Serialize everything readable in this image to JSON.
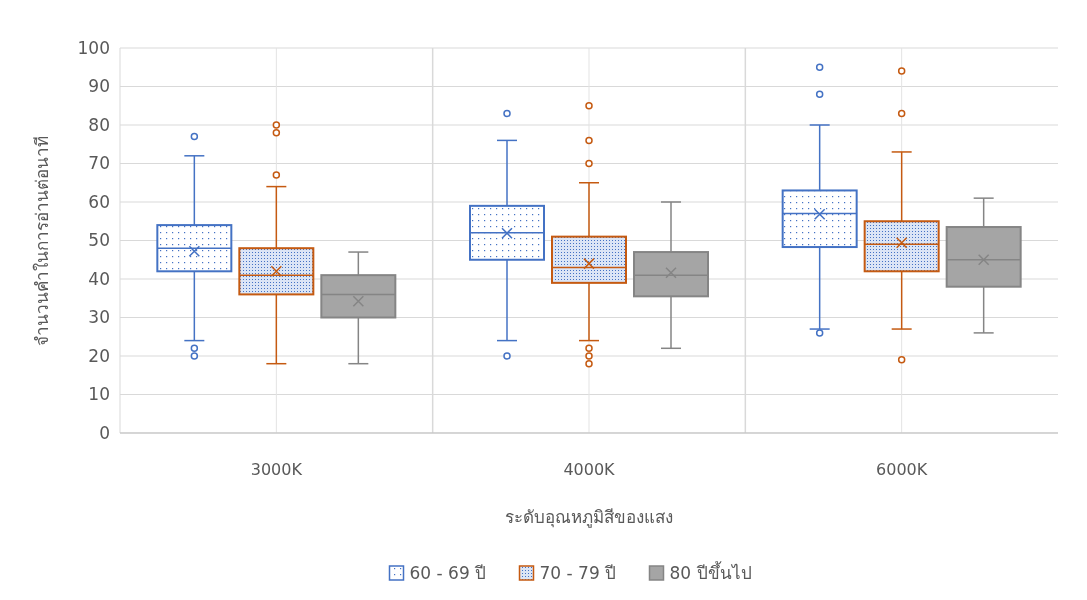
{
  "chart_data": {
    "type": "box",
    "xlabel": "ระดับอุณหภูมิสีของแสง",
    "ylabel": "จำนวนคำในการอ่านต่อนาที",
    "categories": [
      "3000K",
      "4000K",
      "6000K"
    ],
    "ylim": [
      0,
      100
    ],
    "yticks": [
      0,
      10,
      20,
      30,
      40,
      50,
      60,
      70,
      80,
      90,
      100
    ],
    "grid": true,
    "legend": "bottom",
    "series": [
      {
        "name": "60 - 69 ปี",
        "color": "#4472c4",
        "boxes": [
          {
            "low": 24,
            "q1": 42,
            "median": 48,
            "q3": 54,
            "high": 72,
            "mean": 47.2,
            "outliers": [
              77,
              22,
              20
            ]
          },
          {
            "low": 24,
            "q1": 45,
            "median": 52,
            "q3": 59,
            "high": 76,
            "mean": 51.9,
            "outliers": [
              83,
              20
            ]
          },
          {
            "low": 27,
            "q1": 48.3,
            "median": 57,
            "q3": 63,
            "high": 80,
            "mean": 56.8,
            "outliers": [
              95,
              88,
              26
            ]
          }
        ]
      },
      {
        "name": "70 - 79 ปี",
        "color": "#c55a11",
        "boxes": [
          {
            "low": 18,
            "q1": 36,
            "median": 41,
            "q3": 48,
            "high": 64,
            "mean": 42,
            "outliers": [
              80,
              78,
              67
            ]
          },
          {
            "low": 24,
            "q1": 39,
            "median": 43,
            "q3": 51,
            "high": 65,
            "mean": 44,
            "outliers": [
              85,
              76,
              70,
              22,
              20,
              18
            ]
          },
          {
            "low": 27,
            "q1": 42,
            "median": 49,
            "q3": 55,
            "high": 73,
            "mean": 49.4,
            "outliers": [
              94,
              83,
              19
            ]
          }
        ]
      },
      {
        "name": "80 ปีขึ้นไป",
        "color": "#a5a5a5",
        "boxes": [
          {
            "low": 18,
            "q1": 30,
            "median": 36,
            "q3": 41,
            "high": 47,
            "mean": 34.2
          },
          {
            "low": 22,
            "q1": 35.5,
            "median": 41,
            "q3": 47,
            "high": 60,
            "mean": 41.6
          },
          {
            "low": 26,
            "q1": 38,
            "median": 45,
            "q3": 53.5,
            "high": 61,
            "mean": 45
          }
        ]
      }
    ]
  }
}
